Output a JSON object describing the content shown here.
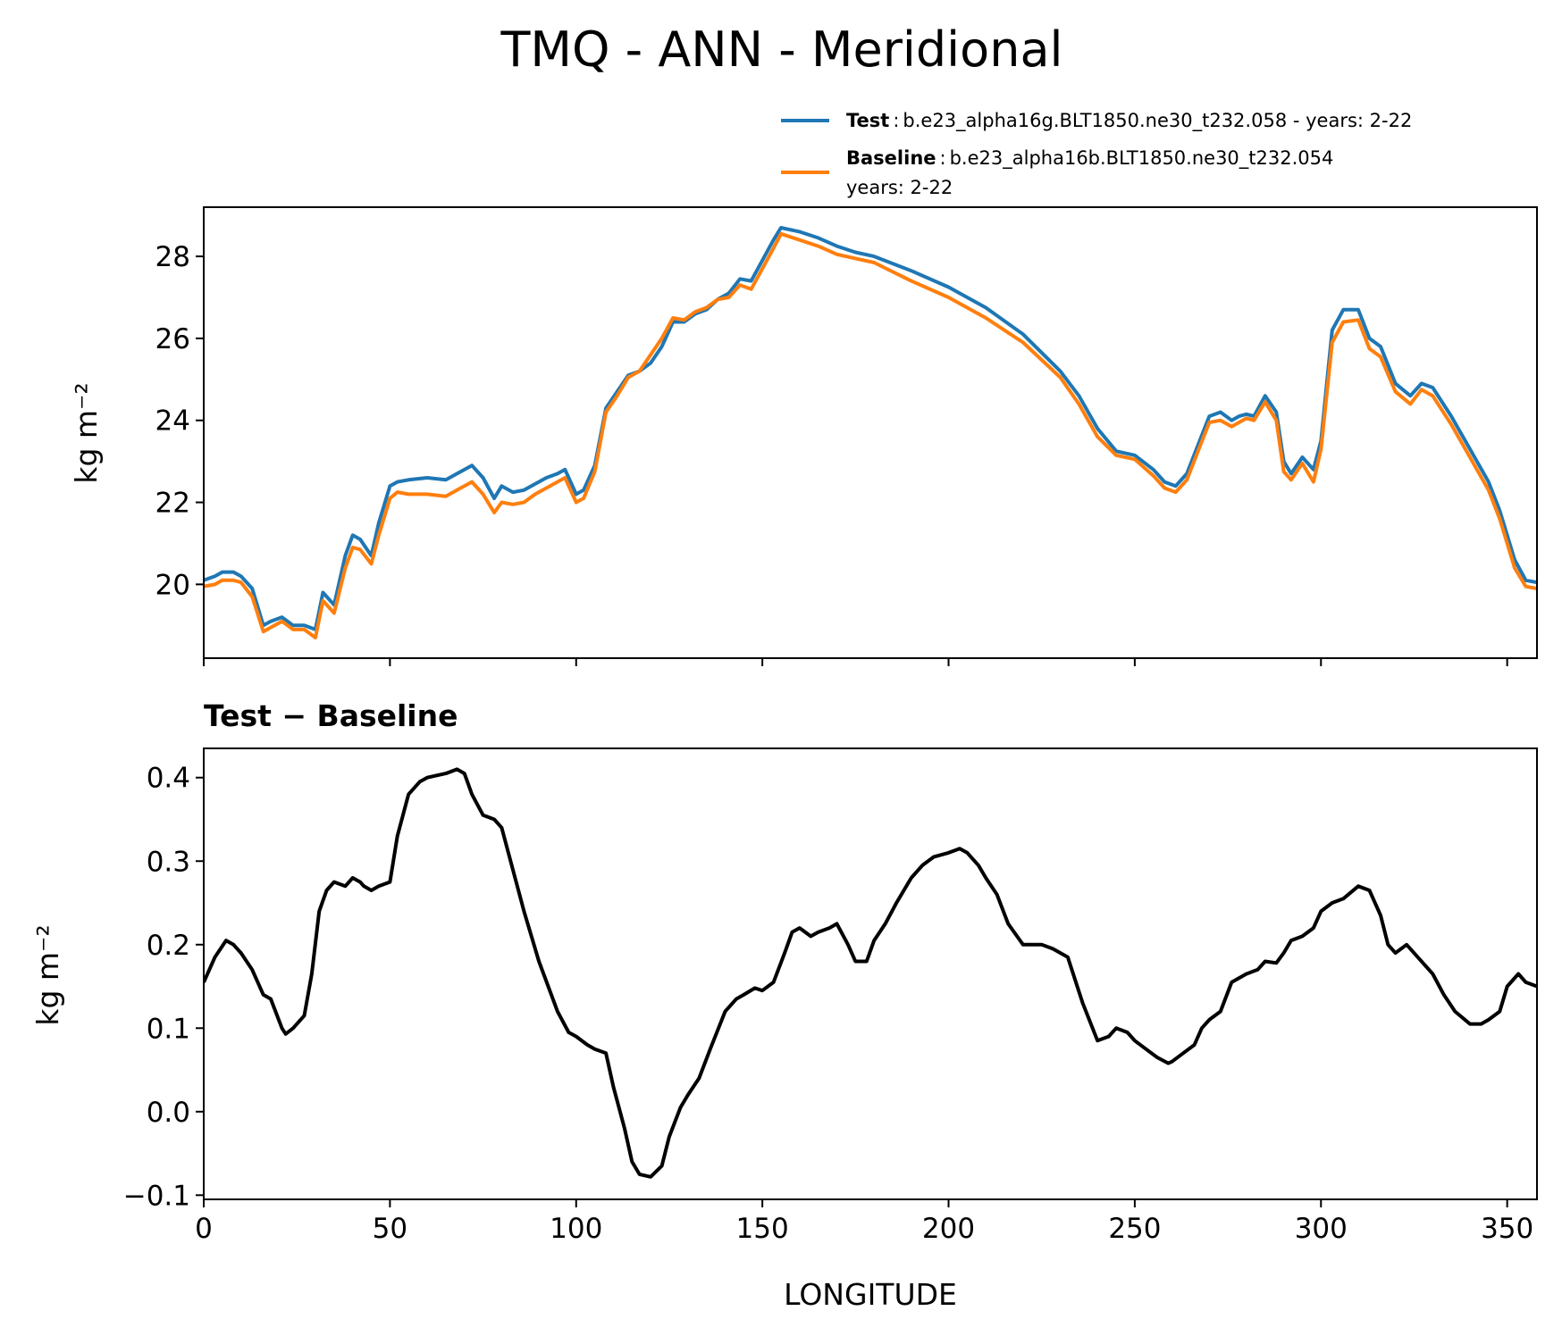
{
  "figure": {
    "title": "TMQ - ANN - Meridional",
    "colors": {
      "test": "#1f77b4",
      "baseline": "#ff7f0e",
      "diff": "#000000"
    }
  },
  "legend": {
    "test_name": "Test",
    "test_desc": "b.e23_alpha16g.BLT1850.ne30_t232.058 - years: 2-22",
    "baseline_name": "Baseline",
    "baseline_desc": "b.e23_alpha16b.BLT1850.ne30_t232.054",
    "baseline_years": "years: 2-22",
    "separator": ":"
  },
  "chart_data": [
    {
      "type": "line",
      "ylabel": "kg m⁻²",
      "xlim": [
        0,
        358
      ],
      "ylim": [
        18.2,
        29.2
      ],
      "yticks": [
        20,
        22,
        24,
        26,
        28
      ],
      "xticks": [
        0,
        50,
        100,
        150,
        200,
        250,
        300,
        350
      ],
      "x": [
        0,
        3,
        5,
        8,
        10,
        13,
        16,
        18,
        21,
        24,
        27,
        30,
        32,
        35,
        38,
        40,
        42,
        45,
        47,
        50,
        52,
        55,
        60,
        65,
        68,
        72,
        75,
        78,
        80,
        83,
        86,
        89,
        92,
        95,
        97,
        100,
        102,
        105,
        108,
        111,
        114,
        117,
        120,
        123,
        126,
        129,
        132,
        135,
        138,
        141,
        144,
        147,
        150,
        153,
        155,
        160,
        165,
        170,
        175,
        180,
        190,
        200,
        210,
        220,
        230,
        235,
        240,
        245,
        250,
        255,
        258,
        261,
        264,
        267,
        270,
        273,
        276,
        278,
        280,
        282,
        285,
        288,
        290,
        292,
        295,
        298,
        300,
        303,
        306,
        310,
        313,
        316,
        320,
        324,
        327,
        330,
        335,
        340,
        345,
        348,
        352,
        355,
        358
      ],
      "series": [
        {
          "name": "Test",
          "values": [
            20.1,
            20.2,
            20.3,
            20.3,
            20.2,
            19.9,
            19.0,
            19.1,
            19.2,
            19.0,
            19.0,
            18.9,
            19.8,
            19.5,
            20.7,
            21.2,
            21.1,
            20.7,
            21.5,
            22.4,
            22.5,
            22.55,
            22.6,
            22.55,
            22.7,
            22.9,
            22.6,
            22.1,
            22.4,
            22.25,
            22.3,
            22.45,
            22.6,
            22.7,
            22.8,
            22.2,
            22.3,
            22.9,
            24.3,
            24.7,
            25.1,
            25.2,
            25.4,
            25.8,
            26.4,
            26.4,
            26.6,
            26.7,
            26.95,
            27.1,
            27.45,
            27.4,
            27.9,
            28.4,
            28.7,
            28.6,
            28.45,
            28.25,
            28.1,
            28.0,
            27.65,
            27.25,
            26.75,
            26.1,
            25.2,
            24.6,
            23.8,
            23.25,
            23.15,
            22.8,
            22.5,
            22.4,
            22.7,
            23.4,
            24.1,
            24.2,
            24.0,
            24.1,
            24.15,
            24.1,
            24.6,
            24.2,
            23.0,
            22.7,
            23.1,
            22.8,
            23.5,
            26.2,
            26.7,
            26.7,
            26.0,
            25.8,
            24.9,
            24.6,
            24.9,
            24.8,
            24.1,
            23.3,
            22.5,
            21.8,
            20.6,
            20.1,
            20.05
          ]
        },
        {
          "name": "Baseline",
          "values": [
            19.95,
            20.0,
            20.1,
            20.1,
            20.05,
            19.7,
            18.85,
            18.95,
            19.1,
            18.9,
            18.9,
            18.7,
            19.6,
            19.3,
            20.4,
            20.9,
            20.85,
            20.5,
            21.2,
            22.1,
            22.25,
            22.2,
            22.2,
            22.15,
            22.3,
            22.5,
            22.2,
            21.75,
            22.0,
            21.95,
            22.0,
            22.2,
            22.35,
            22.5,
            22.6,
            22.0,
            22.1,
            22.75,
            24.2,
            24.6,
            25.05,
            25.2,
            25.6,
            26.0,
            26.5,
            26.45,
            26.65,
            26.75,
            26.95,
            27.0,
            27.3,
            27.2,
            27.7,
            28.2,
            28.55,
            28.4,
            28.25,
            28.05,
            27.95,
            27.85,
            27.4,
            27.0,
            26.5,
            25.9,
            25.05,
            24.4,
            23.6,
            23.15,
            23.05,
            22.65,
            22.35,
            22.25,
            22.55,
            23.25,
            23.95,
            24.0,
            23.85,
            23.95,
            24.05,
            24.0,
            24.45,
            24.0,
            22.75,
            22.55,
            22.95,
            22.5,
            23.3,
            25.9,
            26.4,
            26.45,
            25.75,
            25.55,
            24.7,
            24.4,
            24.75,
            24.6,
            23.9,
            23.1,
            22.3,
            21.6,
            20.4,
            19.95,
            19.9
          ]
        }
      ]
    },
    {
      "type": "line",
      "title": "Test − Baseline",
      "xlabel": "LONGITUDE",
      "ylabel": "kg m⁻²",
      "xlim": [
        0,
        358
      ],
      "ylim": [
        -0.105,
        0.435
      ],
      "yticks": [
        -0.1,
        0.0,
        0.1,
        0.2,
        0.3,
        0.4
      ],
      "ytick_labels": [
        "−0.1",
        "0.0",
        "0.1",
        "0.2",
        "0.3",
        "0.4"
      ],
      "xticks": [
        0,
        50,
        100,
        150,
        200,
        250,
        300,
        350
      ],
      "xtick_labels": [
        "0",
        "50",
        "100",
        "150",
        "200",
        "250",
        "300",
        "350"
      ],
      "x": [
        0,
        3,
        6,
        8,
        10,
        13,
        16,
        18,
        21,
        22,
        24,
        27,
        29,
        31,
        33,
        35,
        38,
        40,
        42,
        43,
        45,
        47,
        50,
        52,
        55,
        58,
        60,
        65,
        68,
        70,
        72,
        75,
        78,
        80,
        83,
        86,
        90,
        95,
        98,
        100,
        103,
        105,
        108,
        110,
        113,
        115,
        117,
        120,
        123,
        125,
        128,
        130,
        133,
        136,
        140,
        143,
        145,
        148,
        150,
        153,
        156,
        158,
        160,
        163,
        165,
        168,
        170,
        173,
        175,
        178,
        180,
        183,
        186,
        190,
        193,
        196,
        200,
        203,
        205,
        208,
        210,
        213,
        216,
        220,
        223,
        225,
        228,
        232,
        236,
        240,
        243,
        245,
        248,
        250,
        253,
        256,
        259,
        260,
        263,
        266,
        268,
        270,
        273,
        276,
        280,
        283,
        285,
        288,
        290,
        292,
        295,
        298,
        300,
        303,
        306,
        310,
        313,
        316,
        318,
        320,
        323,
        326,
        330,
        333,
        336,
        340,
        343,
        345,
        348,
        350,
        353,
        355,
        358
      ],
      "series": [
        {
          "name": "Test − Baseline",
          "values": [
            0.155,
            0.185,
            0.205,
            0.2,
            0.19,
            0.17,
            0.14,
            0.135,
            0.1,
            0.093,
            0.1,
            0.115,
            0.165,
            0.24,
            0.265,
            0.275,
            0.27,
            0.28,
            0.275,
            0.27,
            0.265,
            0.27,
            0.275,
            0.33,
            0.38,
            0.395,
            0.4,
            0.405,
            0.41,
            0.405,
            0.38,
            0.355,
            0.35,
            0.34,
            0.29,
            0.24,
            0.18,
            0.12,
            0.095,
            0.09,
            0.08,
            0.075,
            0.07,
            0.03,
            -0.02,
            -0.06,
            -0.075,
            -0.078,
            -0.065,
            -0.03,
            0.005,
            0.02,
            0.04,
            0.075,
            0.12,
            0.135,
            0.14,
            0.148,
            0.145,
            0.155,
            0.19,
            0.215,
            0.22,
            0.21,
            0.215,
            0.22,
            0.225,
            0.2,
            0.18,
            0.18,
            0.205,
            0.225,
            0.25,
            0.28,
            0.295,
            0.305,
            0.31,
            0.315,
            0.31,
            0.295,
            0.28,
            0.26,
            0.225,
            0.2,
            0.2,
            0.2,
            0.195,
            0.185,
            0.13,
            0.085,
            0.09,
            0.1,
            0.095,
            0.085,
            0.075,
            0.065,
            0.058,
            0.06,
            0.07,
            0.08,
            0.1,
            0.11,
            0.12,
            0.155,
            0.165,
            0.17,
            0.18,
            0.178,
            0.19,
            0.205,
            0.21,
            0.22,
            0.24,
            0.25,
            0.255,
            0.27,
            0.265,
            0.235,
            0.2,
            0.19,
            0.2,
            0.185,
            0.165,
            0.14,
            0.12,
            0.105,
            0.105,
            0.11,
            0.12,
            0.15,
            0.165,
            0.155,
            0.15
          ]
        }
      ]
    }
  ]
}
